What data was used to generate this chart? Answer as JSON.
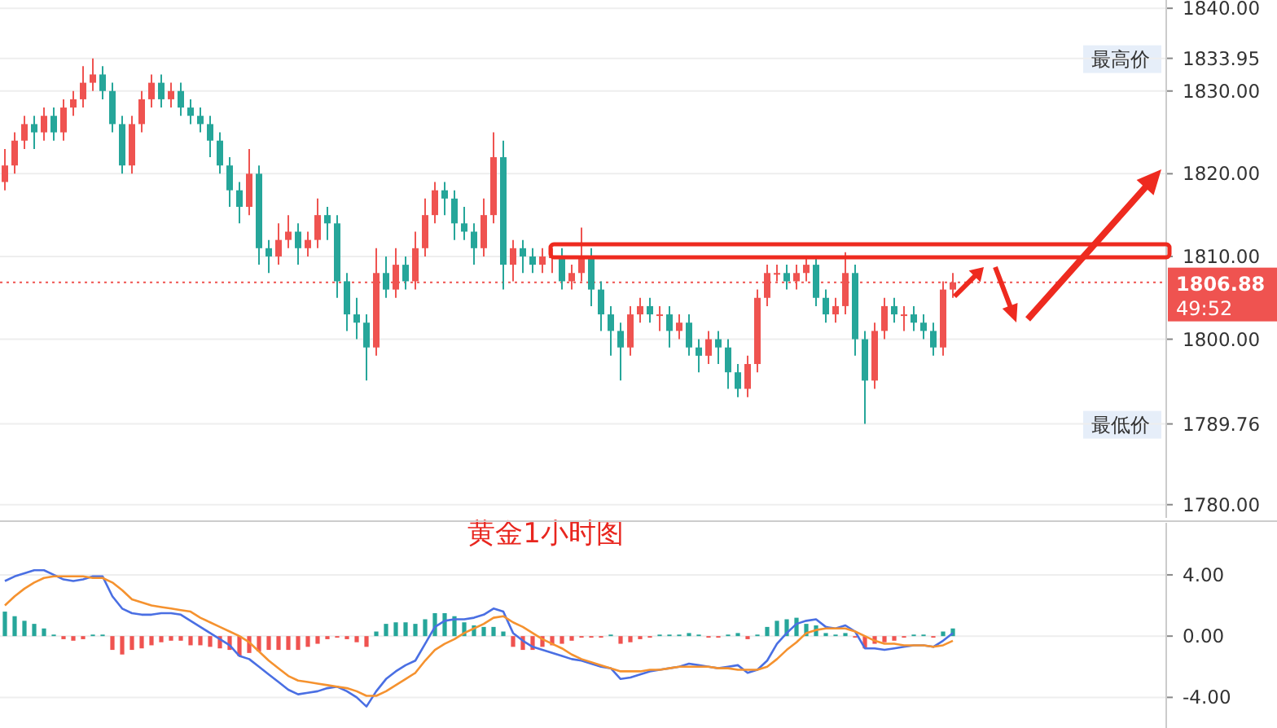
{
  "chart_data": [
    {
      "type": "candlestick",
      "title": "黄金1小时图",
      "categories": [
        null,
        null,
        null,
        null,
        null,
        null,
        null,
        null,
        null,
        null,
        null,
        null,
        null,
        null,
        null,
        null,
        null,
        null,
        null,
        null,
        null,
        null,
        null,
        null,
        null,
        null,
        null,
        null,
        null,
        null,
        null,
        null,
        null,
        null,
        null,
        null,
        null,
        null,
        null,
        null,
        null,
        null,
        null,
        null,
        null,
        null,
        null,
        null,
        null,
        null,
        null,
        null,
        null,
        null,
        null,
        null,
        null,
        null,
        null,
        null,
        null,
        null,
        null,
        null,
        null,
        null,
        null,
        null,
        null,
        null,
        null,
        null,
        null,
        null,
        null,
        null,
        null,
        null,
        null,
        null,
        null,
        null,
        null,
        null,
        null,
        null,
        null,
        null,
        null,
        null,
        null,
        null,
        null,
        null,
        null,
        null,
        null,
        null,
        null,
        null,
        null,
        null,
        null,
        null,
        null,
        null,
        null,
        null,
        null,
        null,
        null,
        null,
        null,
        null,
        null,
        null,
        null,
        null,
        null
      ],
      "ohlc": [
        [
          1819,
          1823,
          1818,
          1821
        ],
        [
          1821,
          1825,
          1820,
          1824
        ],
        [
          1824,
          1827,
          1823,
          1826
        ],
        [
          1826,
          1827,
          1823,
          1825
        ],
        [
          1825,
          1828,
          1824,
          1827
        ],
        [
          1827,
          1828,
          1824,
          1825
        ],
        [
          1825,
          1829,
          1824,
          1828
        ],
        [
          1828,
          1830,
          1827,
          1829
        ],
        [
          1829,
          1833,
          1828,
          1831
        ],
        [
          1831,
          1833.95,
          1830,
          1832
        ],
        [
          1832,
          1833,
          1829,
          1830
        ],
        [
          1830,
          1831,
          1825,
          1826
        ],
        [
          1826,
          1827,
          1820,
          1821
        ],
        [
          1821,
          1827,
          1820,
          1826
        ],
        [
          1826,
          1830,
          1825,
          1829
        ],
        [
          1829,
          1832,
          1828,
          1831
        ],
        [
          1831,
          1832,
          1828,
          1829
        ],
        [
          1829,
          1831,
          1828,
          1830
        ],
        [
          1830,
          1831,
          1827,
          1828
        ],
        [
          1828,
          1829,
          1826,
          1827
        ],
        [
          1827,
          1828,
          1825,
          1826
        ],
        [
          1826,
          1827,
          1822,
          1824
        ],
        [
          1824,
          1825,
          1820,
          1821
        ],
        [
          1821,
          1822,
          1816,
          1818
        ],
        [
          1818,
          1819,
          1814,
          1816
        ],
        [
          1816,
          1823,
          1815,
          1820
        ],
        [
          1820,
          1821,
          1809,
          1811
        ],
        [
          1811,
          1812,
          1808,
          1810
        ],
        [
          1810,
          1814,
          1809,
          1812
        ],
        [
          1812,
          1815,
          1811,
          1813
        ],
        [
          1813,
          1814,
          1809,
          1811
        ],
        [
          1811,
          1813,
          1810,
          1812
        ],
        [
          1812,
          1817,
          1811,
          1815
        ],
        [
          1815,
          1816,
          1812,
          1814
        ],
        [
          1814,
          1815,
          1805,
          1807
        ],
        [
          1807,
          1808,
          1801,
          1803
        ],
        [
          1803,
          1805,
          1800,
          1802
        ],
        [
          1802,
          1803,
          1795,
          1799
        ],
        [
          1799,
          1811,
          1798,
          1808
        ],
        [
          1808,
          1810,
          1805,
          1806
        ],
        [
          1806,
          1811,
          1805,
          1809
        ],
        [
          1809,
          1810,
          1806,
          1807
        ],
        [
          1807,
          1813,
          1806,
          1811
        ],
        [
          1811,
          1817,
          1810,
          1815
        ],
        [
          1815,
          1819,
          1814,
          1818
        ],
        [
          1818,
          1819,
          1815,
          1817
        ],
        [
          1817,
          1818,
          1812,
          1814
        ],
        [
          1814,
          1816,
          1812,
          1813
        ],
        [
          1813,
          1814,
          1809,
          1811
        ],
        [
          1811,
          1817,
          1810,
          1815
        ],
        [
          1815,
          1825,
          1814,
          1822
        ],
        [
          1822,
          1824,
          1806,
          1809
        ],
        [
          1809,
          1812,
          1807,
          1811
        ],
        [
          1811,
          1812,
          1808,
          1810
        ],
        [
          1810,
          1811,
          1808,
          1809
        ],
        [
          1809,
          1811,
          1808,
          1810
        ],
        [
          1810,
          1811,
          1808,
          1810
        ],
        [
          1810,
          1811,
          1806,
          1807
        ],
        [
          1807,
          1809,
          1806,
          1808
        ],
        [
          1808,
          1813.5,
          1807,
          1810
        ],
        [
          1810,
          1811,
          1804,
          1806
        ],
        [
          1806,
          1807,
          1801,
          1803
        ],
        [
          1803,
          1804,
          1798,
          1801
        ],
        [
          1801,
          1802,
          1795,
          1799
        ],
        [
          1799,
          1804,
          1798,
          1803
        ],
        [
          1803,
          1805,
          1802,
          1804
        ],
        [
          1804,
          1805,
          1802,
          1803
        ],
        [
          1803,
          1804,
          1801,
          1803
        ],
        [
          1803,
          1804,
          1799,
          1801
        ],
        [
          1801,
          1803,
          1800,
          1802
        ],
        [
          1802,
          1803,
          1798,
          1799
        ],
        [
          1799,
          1800,
          1796,
          1798
        ],
        [
          1798,
          1801,
          1797,
          1800
        ],
        [
          1800,
          1801,
          1797,
          1799
        ],
        [
          1799,
          1800,
          1794,
          1796
        ],
        [
          1796,
          1797,
          1793,
          1794
        ],
        [
          1794,
          1798,
          1793,
          1797
        ],
        [
          1797,
          1806,
          1796,
          1805
        ],
        [
          1805,
          1809,
          1804,
          1808
        ],
        [
          1808,
          1809,
          1807,
          1808
        ],
        [
          1808,
          1809,
          1806,
          1807
        ],
        [
          1807,
          1809,
          1806,
          1808
        ],
        [
          1808,
          1810,
          1807,
          1809
        ],
        [
          1809,
          1810,
          1804,
          1805
        ],
        [
          1805,
          1806,
          1802,
          1803
        ],
        [
          1803,
          1805,
          1802,
          1804
        ],
        [
          1804,
          1810.5,
          1803,
          1808
        ],
        [
          1808,
          1809,
          1798,
          1800
        ],
        [
          1800,
          1801,
          1789.76,
          1795
        ],
        [
          1795,
          1802,
          1794,
          1801
        ],
        [
          1801,
          1805,
          1800,
          1804
        ],
        [
          1804,
          1805,
          1802,
          1803
        ],
        [
          1803,
          1804,
          1801,
          1803
        ],
        [
          1803,
          1804,
          1801,
          1802
        ],
        [
          1802,
          1803,
          1800,
          1801
        ],
        [
          1801,
          1802,
          1798,
          1799
        ],
        [
          1799,
          1807,
          1798,
          1806
        ],
        [
          1806,
          1808,
          1805,
          1806.88
        ],
        null,
        null,
        null,
        null,
        null,
        null,
        null,
        null,
        null,
        null,
        null,
        null,
        null,
        null,
        null,
        null,
        null,
        null,
        null,
        null,
        null
      ],
      "ylim": [
        1778.4,
        1841
      ],
      "yticks": [
        {
          "value": 1840,
          "label": "1840.00"
        },
        {
          "value": 1833.95,
          "label": "1833.95"
        },
        {
          "value": 1830,
          "label": "1830.00"
        },
        {
          "value": 1820,
          "label": "1820.00"
        },
        {
          "value": 1810,
          "label": "1810.00"
        },
        {
          "value": 1800,
          "label": "1800.00"
        },
        {
          "value": 1789.76,
          "label": "1789.76"
        },
        {
          "value": 1780,
          "label": "1780.00"
        }
      ],
      "grid": "y",
      "ref_lines": [
        {
          "axis": "y",
          "value": 1806.88,
          "label": "1806.88",
          "color": "#ef5350",
          "line_style": "dotted"
        }
      ],
      "annotations": [
        "最高价",
        "最低价",
        "49:52"
      ]
    },
    {
      "type": "line",
      "categories": [
        null,
        null,
        null,
        null,
        null,
        null,
        null,
        null,
        null,
        null,
        null,
        null,
        null,
        null,
        null,
        null,
        null,
        null,
        null,
        null,
        null,
        null,
        null,
        null,
        null,
        null,
        null,
        null,
        null,
        null,
        null,
        null,
        null,
        null,
        null,
        null,
        null,
        null,
        null,
        null,
        null,
        null,
        null,
        null,
        null,
        null,
        null,
        null,
        null,
        null,
        null,
        null,
        null,
        null,
        null,
        null,
        null,
        null,
        null,
        null,
        null,
        null,
        null,
        null,
        null,
        null,
        null,
        null,
        null,
        null,
        null,
        null,
        null,
        null,
        null,
        null,
        null,
        null,
        null,
        null,
        null,
        null,
        null,
        null,
        null,
        null,
        null,
        null,
        null,
        null,
        null,
        null,
        null,
        null,
        null,
        null,
        null,
        null
      ],
      "series": [
        {
          "type": "bar",
          "color": "#26a69a",
          "values": [
            1.6,
            1.3,
            1.0,
            0.8,
            0.5,
            0.1,
            null,
            null,
            null,
            0.1,
            0.1,
            null,
            null,
            null,
            null,
            null,
            null,
            null,
            null,
            null,
            null,
            null,
            null,
            null,
            null,
            null,
            null,
            null,
            null,
            null,
            null,
            null,
            null,
            null,
            null,
            null,
            null,
            null,
            0.3,
            0.8,
            0.9,
            0.9,
            0.8,
            1.1,
            1.5,
            1.5,
            1.3,
            0.9,
            0.7,
            0.6,
            0.6,
            0.3,
            null,
            null,
            null,
            null,
            null,
            null,
            null,
            null,
            null,
            null,
            0.1,
            null,
            null,
            null,
            null,
            0.1,
            0.1,
            0.1,
            0.2,
            0.1,
            null,
            null,
            0.1,
            0.2,
            null,
            0.1,
            0.6,
            1.0,
            1.1,
            1.2,
            0.8,
            0.7,
            0.2,
            0.1,
            0.2,
            null,
            null,
            null,
            null,
            null,
            null,
            0.1,
            0.1,
            null,
            0.3,
            0.5
          ]
        },
        {
          "type": "bar",
          "color": "#ef5350",
          "values": [
            null,
            null,
            null,
            null,
            null,
            null,
            -0.2,
            -0.3,
            -0.2,
            null,
            null,
            -0.9,
            -1.2,
            -0.9,
            -0.8,
            -0.6,
            -0.4,
            -0.3,
            -0.3,
            -0.6,
            -0.6,
            -0.7,
            -0.8,
            -0.9,
            -1.3,
            -1.1,
            -1.0,
            -0.9,
            -0.9,
            -0.9,
            -0.9,
            -0.7,
            -0.5,
            -0.2,
            -0.1,
            -0.2,
            -0.4,
            -0.7,
            null,
            null,
            null,
            null,
            null,
            null,
            null,
            null,
            null,
            null,
            null,
            null,
            null,
            null,
            -0.7,
            -0.9,
            -0.9,
            -0.7,
            -0.6,
            -0.5,
            -0.3,
            -0.1,
            -0.1,
            -0.1,
            null,
            -0.5,
            -0.4,
            -0.2,
            -0.1,
            null,
            null,
            null,
            null,
            null,
            -0.1,
            -0.1,
            null,
            null,
            -0.2,
            null,
            null,
            null,
            null,
            null,
            null,
            null,
            null,
            null,
            null,
            -0.1,
            -0.8,
            -0.5,
            -0.4,
            -0.3,
            -0.1,
            null,
            null,
            -0.1,
            null,
            null
          ]
        },
        {
          "color": "#4a6fe3",
          "values": [
            3.6,
            3.9,
            4.1,
            4.3,
            4.3,
            4.0,
            3.7,
            3.6,
            3.7,
            3.9,
            3.9,
            2.6,
            1.8,
            1.5,
            1.4,
            1.4,
            1.5,
            1.5,
            1.4,
            1.0,
            0.6,
            0.2,
            -0.2,
            -0.6,
            -1.3,
            -1.5,
            -2.0,
            -2.5,
            -3.0,
            -3.5,
            -3.8,
            -3.7,
            -3.6,
            -3.4,
            -3.3,
            -3.6,
            -4.0,
            -4.6,
            -3.6,
            -2.8,
            -2.3,
            -1.9,
            -1.6,
            -0.5,
            0.6,
            1.0,
            1.1,
            1.1,
            1.2,
            1.4,
            1.8,
            1.6,
            0.2,
            -0.3,
            -0.7,
            -0.9,
            -1.1,
            -1.3,
            -1.5,
            -1.6,
            -1.8,
            -2.0,
            -2.1,
            -2.8,
            -2.7,
            -2.5,
            -2.3,
            -2.2,
            -2.1,
            -2.0,
            -1.8,
            -1.9,
            -2.0,
            -2.1,
            -2.0,
            -1.9,
            -2.4,
            -2.2,
            -1.6,
            -0.5,
            0.2,
            0.8,
            1.0,
            1.1,
            0.6,
            0.5,
            0.7,
            0.3,
            -0.8,
            -0.8,
            -0.9,
            -0.8,
            -0.7,
            -0.6,
            -0.6,
            -0.7,
            -0.3,
            0.2
          ]
        },
        {
          "color": "#f5922f",
          "values": [
            2.0,
            2.6,
            3.1,
            3.5,
            3.8,
            3.9,
            3.9,
            3.9,
            3.9,
            3.8,
            3.8,
            3.5,
            3.0,
            2.4,
            2.2,
            2.0,
            1.9,
            1.8,
            1.7,
            1.6,
            1.2,
            0.9,
            0.6,
            0.3,
            0,
            -0.4,
            -1.0,
            -1.6,
            -2.1,
            -2.6,
            -2.9,
            -3.0,
            -3.1,
            -3.2,
            -3.3,
            -3.4,
            -3.6,
            -3.9,
            -3.9,
            -3.6,
            -3.2,
            -2.8,
            -2.4,
            -1.6,
            -0.9,
            -0.5,
            -0.2,
            0.2,
            0.5,
            0.8,
            1.2,
            1.3,
            0.9,
            0.6,
            0.2,
            -0.2,
            -0.5,
            -0.8,
            -1.2,
            -1.5,
            -1.7,
            -1.9,
            -2.1,
            -2.3,
            -2.3,
            -2.3,
            -2.2,
            -2.2,
            -2.1,
            -2.0,
            -2.0,
            -2.0,
            -2.0,
            -2.1,
            -2.1,
            -2.2,
            -2.2,
            -2.2,
            -2.0,
            -1.5,
            -0.9,
            -0.4,
            0.2,
            0.4,
            0.5,
            0.5,
            0.5,
            0.3,
            0,
            -0.3,
            -0.5,
            -0.5,
            -0.6,
            -0.6,
            -0.6,
            -0.7,
            -0.6,
            -0.3
          ]
        }
      ],
      "ylim": [
        -6,
        7.4
      ],
      "yticks": [
        {
          "value": 4,
          "label": "4.00"
        },
        {
          "value": 0,
          "label": "0.00"
        },
        {
          "value": -4,
          "label": "-4.00"
        }
      ],
      "grid": "y"
    }
  ]
}
